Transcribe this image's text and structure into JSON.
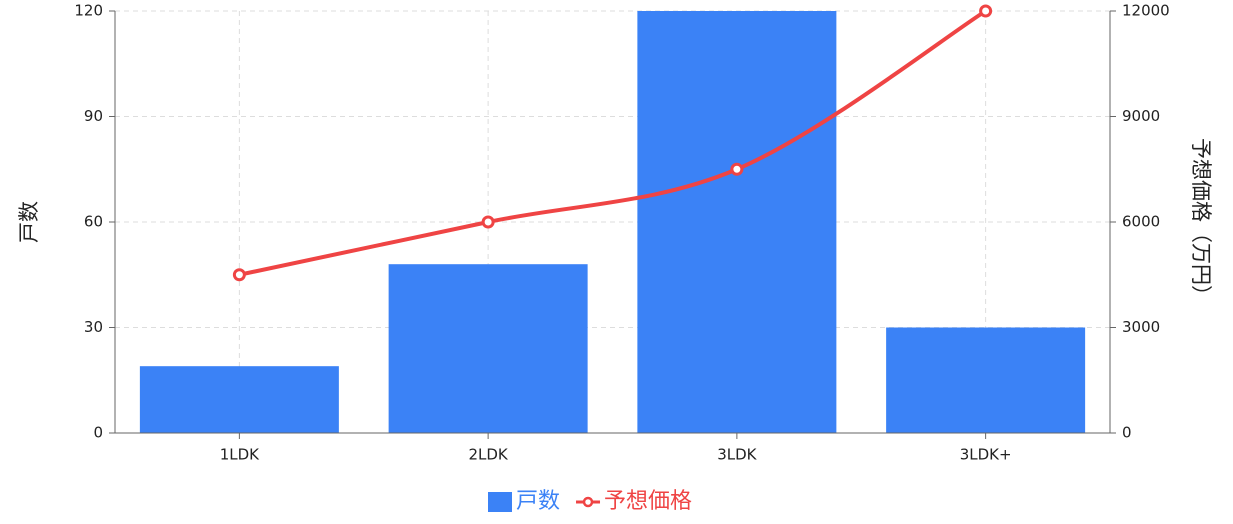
{
  "chart_data": {
    "type": "bar",
    "categories": [
      "1LDK",
      "2LDK",
      "3LDK",
      "3LDK+"
    ],
    "series": [
      {
        "name": "戸数",
        "color": "#3b82f6",
        "values": [
          19,
          48,
          120,
          30
        ]
      },
      {
        "name": "予想価格",
        "color": "#ef4444",
        "type": "line",
        "axis": "y2",
        "values": [
          4500,
          6000,
          7500,
          12000
        ]
      }
    ],
    "ylabel": "戸数",
    "y2label": "予想価格（万円）",
    "ylim": [
      0,
      120
    ],
    "yticks": [
      0,
      30,
      60,
      90,
      120
    ],
    "y2lim": [
      0,
      12000
    ],
    "y2ticks": [
      0,
      3000,
      6000,
      9000,
      12000
    ],
    "grid": true,
    "legend": "bottom"
  }
}
